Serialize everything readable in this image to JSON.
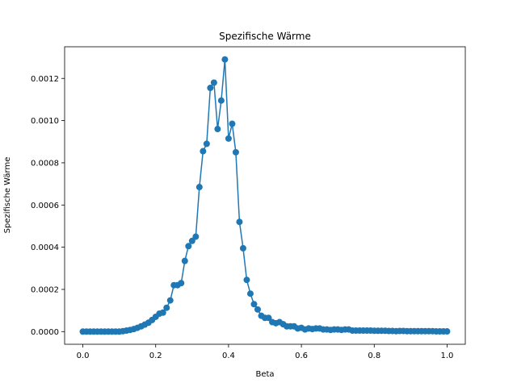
{
  "chart_data": {
    "type": "line",
    "title": "Spezifische Wärme",
    "xlabel": "Beta",
    "ylabel": "Spezifische Wärme",
    "xlim": [
      -0.05,
      1.05
    ],
    "ylim": [
      -6e-05,
      0.00135
    ],
    "x_ticks": [
      0.0,
      0.2,
      0.4,
      0.6,
      0.8,
      1.0
    ],
    "x_tick_labels": [
      "0.0",
      "0.2",
      "0.4",
      "0.6",
      "0.8",
      "1.0"
    ],
    "y_ticks": [
      0.0,
      0.0002,
      0.0004,
      0.0006,
      0.0008,
      0.001,
      0.0012
    ],
    "y_tick_labels": [
      "0.0000",
      "0.0002",
      "0.0004",
      "0.0006",
      "0.0008",
      "0.0010",
      "0.0012"
    ],
    "grid": false,
    "marker": "circle",
    "color": "#1f77b4",
    "series": [
      {
        "x": [
          0.0,
          0.01,
          0.02,
          0.03,
          0.04,
          0.05,
          0.06,
          0.07,
          0.08,
          0.09,
          0.1,
          0.11,
          0.12,
          0.13,
          0.14,
          0.15,
          0.16,
          0.17,
          0.18,
          0.19,
          0.2,
          0.21,
          0.22,
          0.23,
          0.24,
          0.25,
          0.26,
          0.27,
          0.28,
          0.29,
          0.3,
          0.31,
          0.32,
          0.33,
          0.34,
          0.35,
          0.36,
          0.37,
          0.38,
          0.39,
          0.4,
          0.41,
          0.42,
          0.43,
          0.44,
          0.45,
          0.46,
          0.47,
          0.48,
          0.49,
          0.5,
          0.51,
          0.52,
          0.53,
          0.54,
          0.55,
          0.56,
          0.57,
          0.58,
          0.59,
          0.6,
          0.61,
          0.62,
          0.63,
          0.64,
          0.65,
          0.66,
          0.67,
          0.68,
          0.69,
          0.7,
          0.71,
          0.72,
          0.73,
          0.74,
          0.75,
          0.76,
          0.77,
          0.78,
          0.79,
          0.8,
          0.81,
          0.82,
          0.83,
          0.84,
          0.85,
          0.86,
          0.87,
          0.88,
          0.89,
          0.9,
          0.91,
          0.92,
          0.93,
          0.94,
          0.95,
          0.96,
          0.97,
          0.98,
          0.99,
          1.0
        ],
        "values": [
          0.0,
          0.0,
          0.0,
          0.0,
          0.0,
          0.0,
          0.0,
          0.0,
          0.0,
          0.0,
          0.0,
          2e-06,
          5e-06,
          8e-06,
          1.2e-05,
          1.8e-05,
          2.5e-05,
          3.3e-05,
          4.2e-05,
          5.5e-05,
          7e-05,
          8.5e-05,
          9e-05,
          0.000113,
          0.000148,
          0.00022,
          0.00022,
          0.00023,
          0.000335,
          0.000405,
          0.00043,
          0.00045,
          0.000685,
          0.000855,
          0.00089,
          0.001155,
          0.00118,
          0.00096,
          0.001095,
          0.00129,
          0.000915,
          0.000985,
          0.00085,
          0.00052,
          0.000395,
          0.000245,
          0.00018,
          0.00013,
          0.000105,
          7.5e-05,
          6.5e-05,
          6.5e-05,
          4.5e-05,
          4e-05,
          4.5e-05,
          3.5e-05,
          2.5e-05,
          2.5e-05,
          2.5e-05,
          1.5e-05,
          1.8e-05,
          1e-05,
          1.5e-05,
          1.2e-05,
          1.5e-05,
          1.5e-05,
          1e-05,
          1e-05,
          8e-06,
          1e-05,
          1e-05,
          8e-06,
          1e-05,
          1e-05,
          5e-06,
          5e-06,
          5e-06,
          5e-06,
          5e-06,
          5e-06,
          4e-06,
          4e-06,
          4e-06,
          4e-06,
          3e-06,
          3e-06,
          2e-06,
          3e-06,
          3e-06,
          2e-06,
          2e-06,
          2e-06,
          2e-06,
          2e-06,
          2e-06,
          2e-06,
          2e-06,
          1e-06,
          1e-06,
          1e-06,
          1e-06
        ]
      }
    ]
  }
}
